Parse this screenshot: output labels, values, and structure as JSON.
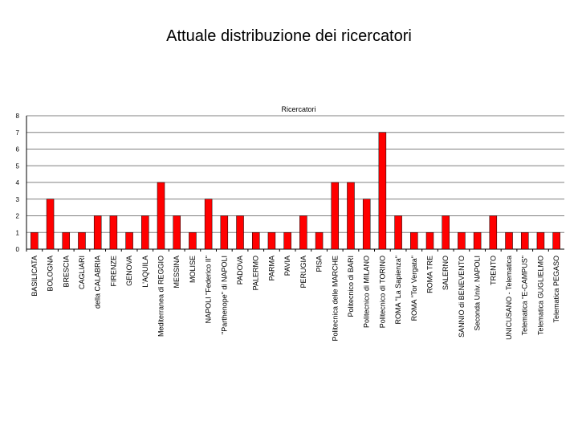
{
  "slide": {
    "title": "Attuale distribuzione dei ricercatori"
  },
  "chart_data": {
    "type": "bar",
    "title": "Ricercatori",
    "xlabel": "",
    "ylabel": "",
    "ylim": [
      0,
      8
    ],
    "yticks": [
      0,
      1,
      2,
      3,
      4,
      5,
      6,
      7,
      8
    ],
    "grid": true,
    "legend": "none",
    "bar_color": "#ff0000",
    "categories": [
      "BASILICATA",
      "BOLOGNA",
      "BRESCIA",
      "CAGLIARI",
      "della CALABRIA",
      "FIRENZE",
      "GENOVA",
      "L'AQUILA",
      "Mediterranea di REGGIO",
      "MESSINA",
      "MOLISE",
      "NAPOLI \"Federico II\"",
      "\"Parthenope\" di NAPOLI",
      "PADOVA",
      "PALERMO",
      "PARMA",
      "PAVIA",
      "PERUGIA",
      "PISA",
      "Politecnica delle MARCHE",
      "Politecnico di BARI",
      "Politecnico di MILANO",
      "Politecnico di TORINO",
      "ROMA \"La Sapienza\"",
      "ROMA \"Tor Vergata\"",
      "ROMA TRE",
      "SALERNO",
      "SANNIO di BENEVENTO",
      "Seconda Univ. NAPOLI",
      "TRENTO",
      "UNICUSANO - Telematica",
      "Telematica \"E-CAMPUS\"",
      "Telematica GUGLIELMO",
      "Telematica PEGASO"
    ],
    "values": [
      1,
      3,
      1,
      1,
      2,
      2,
      1,
      2,
      4,
      2,
      1,
      3,
      2,
      2,
      1,
      1,
      1,
      2,
      1,
      4,
      4,
      3,
      7,
      2,
      1,
      1,
      2,
      1,
      1,
      2,
      1,
      1,
      1,
      1
    ]
  }
}
